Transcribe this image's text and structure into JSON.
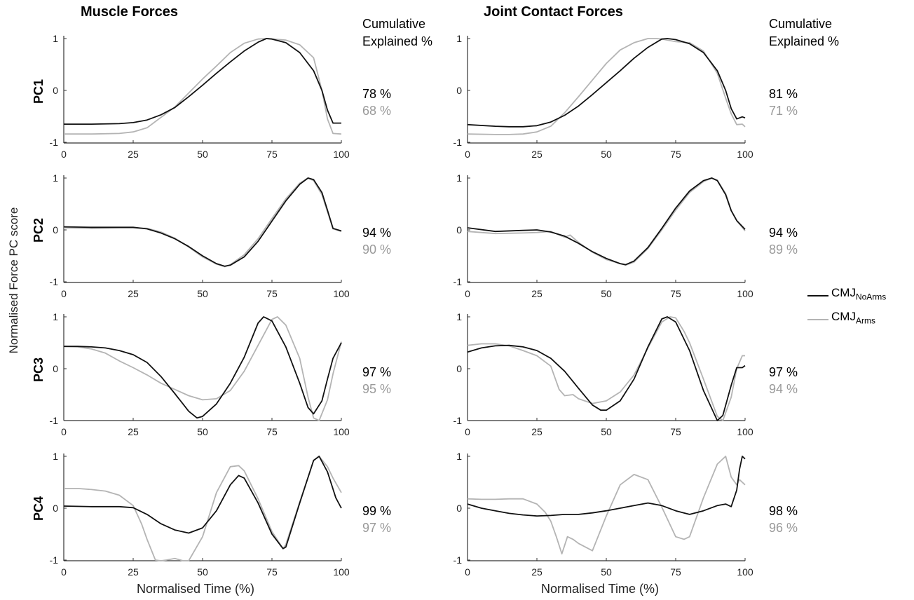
{
  "headers": {
    "left_title": "Muscle Forces",
    "right_title": "Joint Contact Forces",
    "cumulative_line1": "Cumulative",
    "cumulative_line2": "Explained %"
  },
  "y_axis_title": "Normalised Force PC score",
  "x_axis_title": "Normalised Time (%)",
  "legend": [
    {
      "name": "CMJ",
      "sub": "NoArms",
      "color": "#111111"
    },
    {
      "name": "CMJ",
      "sub": "Arms",
      "color": "#b4b4b4"
    }
  ],
  "explained": [
    {
      "pc": "PC1",
      "muscle": [
        "78 %",
        "68 %"
      ],
      "joint": [
        "81 %",
        "71 %"
      ]
    },
    {
      "pc": "PC2",
      "muscle": [
        "94 %",
        "90 %"
      ],
      "joint": [
        "94 %",
        "89 %"
      ]
    },
    {
      "pc": "PC3",
      "muscle": [
        "97 %",
        "95 %"
      ],
      "joint": [
        "97 %",
        "94 %"
      ]
    },
    {
      "pc": "PC4",
      "muscle": [
        "99 %",
        "97 %"
      ],
      "joint": [
        "98 %",
        "96 %"
      ]
    }
  ],
  "chart_data": [
    {
      "type": "line",
      "title": "Muscle Forces",
      "ylabel": "PC1",
      "xlim": [
        0,
        100
      ],
      "ylim": [
        -1,
        1
      ],
      "xticks": [
        0,
        25,
        50,
        75,
        100
      ],
      "yticks": [
        -1,
        0,
        1
      ],
      "series": [
        {
          "name": "CMJNoArms",
          "x": [
            0,
            10,
            20,
            25,
            30,
            35,
            40,
            45,
            50,
            55,
            60,
            65,
            70,
            73,
            75,
            80,
            85,
            90,
            93,
            95,
            97,
            100
          ],
          "y": [
            -0.65,
            -0.65,
            -0.64,
            -0.62,
            -0.57,
            -0.47,
            -0.33,
            -0.12,
            0.1,
            0.33,
            0.55,
            0.76,
            0.93,
            1.0,
            0.99,
            0.92,
            0.73,
            0.38,
            0.0,
            -0.38,
            -0.63,
            -0.63
          ]
        },
        {
          "name": "CMJArms",
          "x": [
            0,
            10,
            20,
            25,
            30,
            35,
            40,
            45,
            50,
            55,
            60,
            65,
            70,
            73,
            75,
            80,
            85,
            90,
            93,
            95,
            97,
            100
          ],
          "y": [
            -0.84,
            -0.84,
            -0.83,
            -0.8,
            -0.72,
            -0.52,
            -0.32,
            -0.05,
            0.22,
            0.47,
            0.73,
            0.91,
            0.99,
            1.0,
            0.99,
            0.97,
            0.88,
            0.63,
            0.0,
            -0.55,
            -0.83,
            -0.84
          ]
        }
      ]
    },
    {
      "type": "line",
      "title": "Joint Contact Forces",
      "ylabel": "PC1",
      "xlim": [
        0,
        100
      ],
      "ylim": [
        -1,
        1
      ],
      "xticks": [
        0,
        25,
        50,
        75,
        100
      ],
      "yticks": [
        -1,
        0,
        1
      ],
      "series": [
        {
          "name": "CMJNoArms",
          "x": [
            0,
            10,
            15,
            20,
            25,
            30,
            35,
            40,
            45,
            50,
            55,
            60,
            65,
            70,
            72,
            75,
            80,
            85,
            90,
            93,
            95,
            97,
            99,
            100
          ],
          "y": [
            -0.66,
            -0.69,
            -0.7,
            -0.7,
            -0.68,
            -0.61,
            -0.48,
            -0.3,
            -0.08,
            0.15,
            0.38,
            0.62,
            0.83,
            0.99,
            1.0,
            0.98,
            0.9,
            0.73,
            0.38,
            0.0,
            -0.35,
            -0.55,
            -0.51,
            -0.53
          ]
        },
        {
          "name": "CMJArms",
          "x": [
            0,
            10,
            15,
            20,
            25,
            30,
            35,
            40,
            45,
            50,
            55,
            60,
            65,
            68,
            70,
            75,
            80,
            85,
            90,
            93,
            95,
            97,
            99,
            100
          ],
          "y": [
            -0.84,
            -0.85,
            -0.85,
            -0.84,
            -0.8,
            -0.69,
            -0.43,
            -0.12,
            0.2,
            0.52,
            0.78,
            0.92,
            1.0,
            1.0,
            0.99,
            0.94,
            0.92,
            0.76,
            0.33,
            -0.15,
            -0.45,
            -0.66,
            -0.65,
            -0.7
          ]
        }
      ]
    },
    {
      "type": "line",
      "title": "Muscle Forces",
      "ylabel": "PC2",
      "xlim": [
        0,
        100
      ],
      "ylim": [
        -1,
        1
      ],
      "xticks": [
        0,
        25,
        50,
        75,
        100
      ],
      "yticks": [
        -1,
        0,
        1
      ],
      "series": [
        {
          "name": "CMJNoArms",
          "x": [
            0,
            10,
            20,
            25,
            30,
            35,
            40,
            45,
            50,
            55,
            58,
            60,
            65,
            70,
            75,
            80,
            85,
            88,
            90,
            93,
            95,
            97,
            100
          ],
          "y": [
            0.06,
            0.05,
            0.05,
            0.05,
            0.02,
            -0.06,
            -0.17,
            -0.32,
            -0.5,
            -0.65,
            -0.7,
            -0.68,
            -0.52,
            -0.22,
            0.17,
            0.56,
            0.88,
            1.0,
            0.97,
            0.72,
            0.38,
            0.03,
            -0.02
          ]
        },
        {
          "name": "CMJArms",
          "x": [
            0,
            10,
            20,
            25,
            30,
            35,
            40,
            45,
            50,
            55,
            58,
            60,
            65,
            70,
            75,
            80,
            85,
            88,
            90,
            93,
            95,
            97,
            100
          ],
          "y": [
            0.04,
            0.03,
            0.04,
            0.04,
            0.03,
            -0.04,
            -0.16,
            -0.33,
            -0.52,
            -0.66,
            -0.71,
            -0.67,
            -0.48,
            -0.17,
            0.22,
            0.6,
            0.9,
            1.0,
            0.95,
            0.68,
            0.35,
            0.02,
            -0.03
          ]
        }
      ]
    },
    {
      "type": "line",
      "title": "Joint Contact Forces",
      "ylabel": "PC2",
      "xlim": [
        0,
        100
      ],
      "ylim": [
        -1,
        1
      ],
      "xticks": [
        0,
        25,
        50,
        75,
        100
      ],
      "yticks": [
        -1,
        0,
        1
      ],
      "series": [
        {
          "name": "CMJNoArms",
          "x": [
            0,
            10,
            20,
            25,
            30,
            35,
            40,
            45,
            50,
            55,
            57,
            60,
            65,
            70,
            75,
            80,
            85,
            88,
            90,
            93,
            95,
            97,
            100
          ],
          "y": [
            0.04,
            -0.03,
            -0.01,
            0.0,
            -0.04,
            -0.12,
            -0.26,
            -0.42,
            -0.55,
            -0.65,
            -0.67,
            -0.6,
            -0.34,
            0.03,
            0.42,
            0.75,
            0.95,
            1.0,
            0.95,
            0.68,
            0.37,
            0.18,
            0.01
          ]
        },
        {
          "name": "CMJArms",
          "x": [
            0,
            10,
            20,
            25,
            30,
            35,
            37,
            40,
            45,
            50,
            55,
            57,
            60,
            65,
            70,
            75,
            80,
            85,
            88,
            90,
            93,
            95,
            97,
            100
          ],
          "y": [
            -0.03,
            -0.07,
            -0.06,
            -0.05,
            -0.03,
            -0.14,
            -0.1,
            -0.24,
            -0.43,
            -0.57,
            -0.65,
            -0.68,
            -0.62,
            -0.36,
            0.0,
            0.38,
            0.72,
            0.93,
            1.0,
            0.96,
            0.7,
            0.38,
            0.18,
            -0.02
          ]
        }
      ]
    },
    {
      "type": "line",
      "title": "Muscle Forces",
      "ylabel": "PC3",
      "xlim": [
        0,
        100
      ],
      "ylim": [
        -1,
        1
      ],
      "xticks": [
        0,
        25,
        50,
        75,
        100
      ],
      "yticks": [
        -1,
        0,
        1
      ],
      "series": [
        {
          "name": "CMJNoArms",
          "x": [
            0,
            5,
            10,
            15,
            20,
            25,
            30,
            35,
            40,
            45,
            48,
            50,
            55,
            60,
            65,
            70,
            72,
            75,
            80,
            85,
            88,
            90,
            93,
            95,
            97,
            100
          ],
          "y": [
            0.43,
            0.43,
            0.42,
            0.4,
            0.35,
            0.27,
            0.12,
            -0.15,
            -0.48,
            -0.82,
            -0.95,
            -0.92,
            -0.68,
            -0.28,
            0.22,
            0.88,
            1.0,
            0.92,
            0.42,
            -0.28,
            -0.75,
            -0.87,
            -0.62,
            -0.2,
            0.2,
            0.5
          ]
        },
        {
          "name": "CMJArms",
          "x": [
            0,
            5,
            10,
            15,
            20,
            25,
            30,
            35,
            40,
            45,
            50,
            55,
            60,
            65,
            70,
            75,
            77,
            80,
            85,
            88,
            90,
            92,
            95,
            97,
            100
          ],
          "y": [
            0.43,
            0.42,
            0.38,
            0.3,
            0.15,
            0.02,
            -0.12,
            -0.28,
            -0.4,
            -0.52,
            -0.6,
            -0.58,
            -0.42,
            -0.05,
            0.45,
            0.95,
            1.0,
            0.84,
            0.2,
            -0.55,
            -0.95,
            -1.15,
            -0.6,
            -0.1,
            0.52
          ]
        }
      ]
    },
    {
      "type": "line",
      "title": "Joint Contact Forces",
      "ylabel": "PC3",
      "xlim": [
        0,
        100
      ],
      "ylim": [
        -1,
        1
      ],
      "xticks": [
        0,
        25,
        50,
        75,
        100
      ],
      "yticks": [
        -1,
        0,
        1
      ],
      "series": [
        {
          "name": "CMJNoArms",
          "x": [
            0,
            5,
            10,
            15,
            20,
            25,
            30,
            35,
            40,
            45,
            48,
            50,
            55,
            60,
            65,
            70,
            72,
            75,
            80,
            85,
            90,
            92,
            95,
            97,
            99,
            100
          ],
          "y": [
            0.32,
            0.4,
            0.44,
            0.45,
            0.42,
            0.35,
            0.2,
            -0.05,
            -0.38,
            -0.7,
            -0.8,
            -0.8,
            -0.62,
            -0.2,
            0.42,
            0.96,
            1.0,
            0.9,
            0.35,
            -0.42,
            -1.02,
            -0.9,
            -0.32,
            0.02,
            0.02,
            0.06
          ]
        },
        {
          "name": "CMJArms",
          "x": [
            0,
            5,
            10,
            15,
            20,
            25,
            30,
            33,
            35,
            38,
            40,
            45,
            50,
            55,
            60,
            65,
            70,
            73,
            75,
            78,
            80,
            85,
            90,
            92,
            95,
            97,
            99,
            100
          ],
          "y": [
            0.45,
            0.48,
            0.48,
            0.44,
            0.35,
            0.25,
            0.05,
            -0.4,
            -0.52,
            -0.5,
            -0.58,
            -0.67,
            -0.62,
            -0.45,
            -0.12,
            0.4,
            0.9,
            1.0,
            0.98,
            0.72,
            0.5,
            -0.2,
            -0.92,
            -1.1,
            -0.55,
            0.0,
            0.25,
            0.25
          ]
        }
      ]
    },
    {
      "type": "line",
      "title": "Muscle Forces",
      "ylabel": "PC4",
      "xlim": [
        0,
        100
      ],
      "ylim": [
        -1,
        1
      ],
      "xticks": [
        0,
        25,
        50,
        75,
        100
      ],
      "yticks": [
        -1,
        0,
        1
      ],
      "series": [
        {
          "name": "CMJNoArms",
          "x": [
            0,
            10,
            20,
            25,
            30,
            35,
            40,
            45,
            50,
            55,
            60,
            63,
            65,
            70,
            75,
            79,
            80,
            85,
            90,
            92,
            95,
            98,
            100
          ],
          "y": [
            0.04,
            0.03,
            0.03,
            0.01,
            -0.12,
            -0.3,
            -0.42,
            -0.48,
            -0.38,
            -0.05,
            0.45,
            0.63,
            0.58,
            0.1,
            -0.5,
            -0.78,
            -0.75,
            0.1,
            0.92,
            1.0,
            0.7,
            0.2,
            0.0
          ]
        },
        {
          "name": "CMJArms",
          "x": [
            0,
            5,
            10,
            15,
            20,
            25,
            28,
            30,
            33,
            35,
            37,
            40,
            43,
            45,
            50,
            55,
            60,
            63,
            65,
            70,
            75,
            79,
            80,
            85,
            90,
            92,
            95,
            97,
            100
          ],
          "y": [
            0.38,
            0.38,
            0.36,
            0.33,
            0.25,
            0.05,
            -0.3,
            -0.6,
            -1.0,
            -1.25,
            -1.0,
            -0.97,
            -1.12,
            -1.15,
            -0.55,
            0.3,
            0.8,
            0.82,
            0.72,
            0.18,
            -0.45,
            -0.78,
            -0.7,
            0.12,
            0.92,
            1.0,
            0.8,
            0.58,
            0.3
          ]
        }
      ]
    },
    {
      "type": "line",
      "title": "Joint Contact Forces",
      "ylabel": "PC4",
      "xlim": [
        0,
        100
      ],
      "ylim": [
        -1,
        1
      ],
      "xticks": [
        0,
        25,
        50,
        75,
        100
      ],
      "yticks": [
        -1,
        0,
        1
      ],
      "series": [
        {
          "name": "CMJNoArms",
          "x": [
            0,
            5,
            10,
            15,
            20,
            25,
            30,
            35,
            40,
            45,
            50,
            55,
            60,
            65,
            70,
            75,
            80,
            85,
            90,
            93,
            95,
            97,
            98,
            99,
            100
          ],
          "y": [
            0.08,
            0.0,
            -0.05,
            -0.1,
            -0.13,
            -0.15,
            -0.14,
            -0.12,
            -0.12,
            -0.09,
            -0.05,
            0.0,
            0.05,
            0.1,
            0.05,
            -0.05,
            -0.12,
            -0.05,
            0.05,
            0.08,
            0.03,
            0.35,
            0.75,
            1.0,
            0.95
          ]
        },
        {
          "name": "CMJArms",
          "x": [
            0,
            5,
            10,
            15,
            20,
            25,
            28,
            30,
            32,
            34,
            36,
            38,
            40,
            45,
            50,
            55,
            60,
            65,
            70,
            75,
            78,
            80,
            85,
            90,
            93,
            95,
            97,
            98,
            99,
            100
          ],
          "y": [
            0.18,
            0.17,
            0.17,
            0.18,
            0.18,
            0.08,
            -0.08,
            -0.25,
            -0.55,
            -0.88,
            -0.55,
            -0.6,
            -0.68,
            -0.82,
            -0.15,
            0.45,
            0.65,
            0.55,
            0.02,
            -0.55,
            -0.6,
            -0.55,
            0.2,
            0.85,
            1.0,
            0.6,
            0.45,
            0.55,
            0.5,
            0.45
          ]
        }
      ]
    }
  ]
}
